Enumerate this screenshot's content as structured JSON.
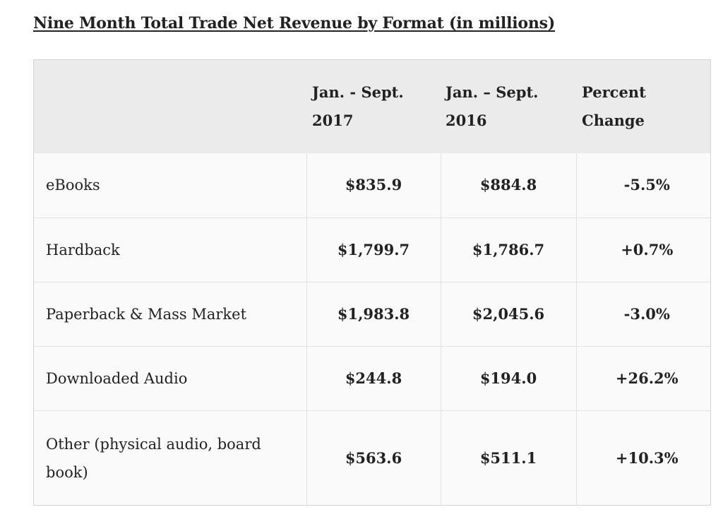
{
  "title": "Nine Month Total Trade Net Revenue by Format (in millions)",
  "table": {
    "headers": [
      "",
      "Jan. - Sept. 2017",
      "Jan. – Sept. 2016",
      "Percent Change"
    ],
    "rows": [
      [
        "eBooks",
        "$835.9",
        "$884.8",
        "-5.5%"
      ],
      [
        "Hardback",
        "$1,799.7",
        "$1,786.7",
        "+0.7%"
      ],
      [
        "Paperback & Mass Market",
        "$1,983.8",
        "$2,045.6",
        "-3.0%"
      ],
      [
        "Downloaded Audio",
        "$244.8",
        "$194.0",
        "+26.2%"
      ],
      [
        "Other (physical audio, board book)",
        "$563.6",
        "$511.1",
        "+10.3%"
      ]
    ]
  }
}
